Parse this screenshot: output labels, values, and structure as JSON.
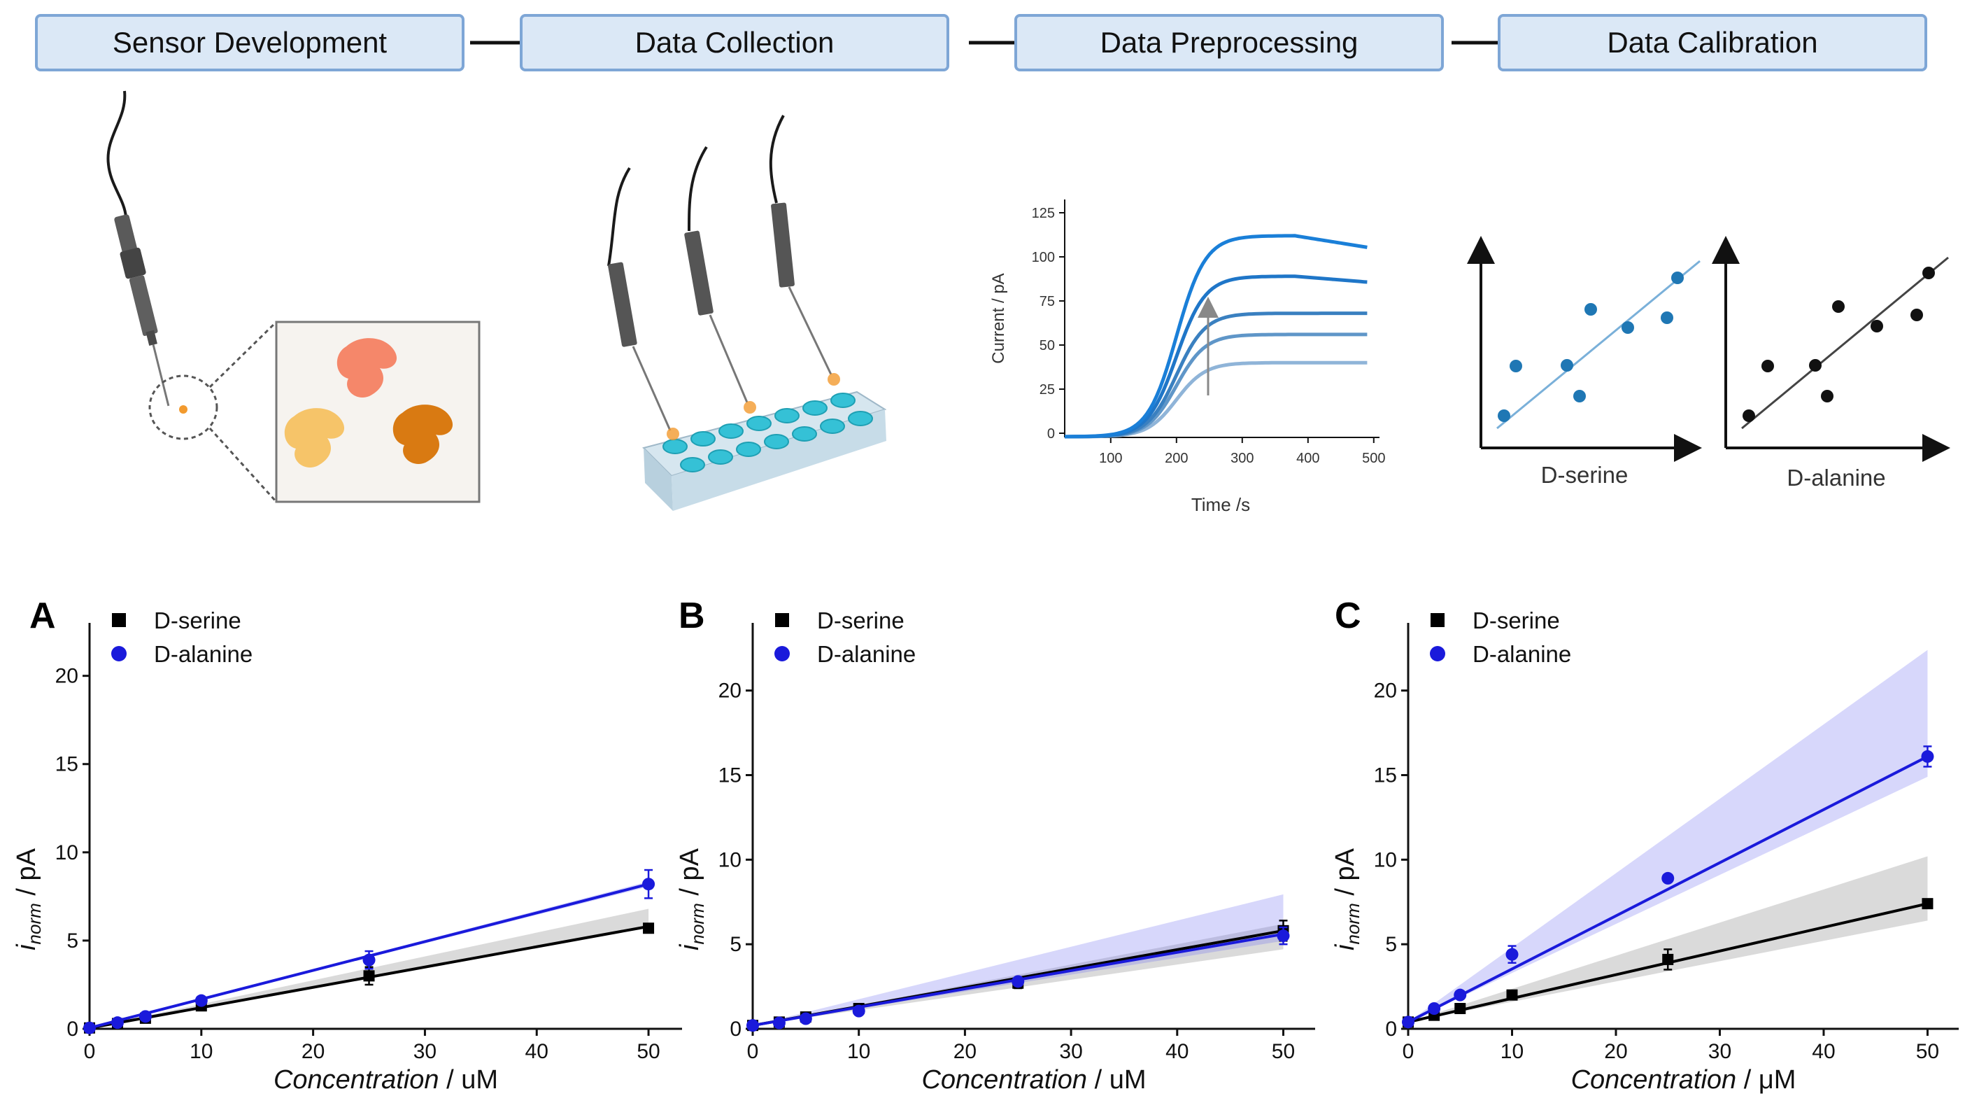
{
  "workflow": {
    "stages": [
      "Sensor Development",
      "Data Collection",
      "Data Preprocessing",
      "Data Calibration"
    ]
  },
  "preprocessing_plot": {
    "ylabel": "Current / pA",
    "xlabel": "Time /s",
    "yticks": [
      "0",
      "25",
      "50",
      "75",
      "100",
      "125"
    ],
    "xticks": [
      "100",
      "200",
      "300",
      "400",
      "500"
    ],
    "curve_plateaus": [
      40,
      56,
      68,
      89,
      112
    ],
    "curve_colors": [
      "#8fb4d8",
      "#5f96c8",
      "#3a80c0",
      "#1f76c8",
      "#1a7fd8"
    ]
  },
  "calibration_plots": [
    {
      "label": "D-serine",
      "color": "#1f77b4"
    },
    {
      "label": "D-alanine",
      "color": "#111111"
    }
  ],
  "chart_data": [
    {
      "type": "scatter",
      "panel": "A",
      "xlabel": "Concentration / uM",
      "ylabel": "i_norm / pA",
      "xlim": [
        0,
        53
      ],
      "ylim": [
        0,
        23
      ],
      "xticks": [
        0,
        10,
        20,
        30,
        40,
        50
      ],
      "yticks": [
        0,
        5,
        10,
        15,
        20
      ],
      "x": [
        0,
        2.5,
        5,
        10,
        25,
        50
      ],
      "series": [
        {
          "name": "D-serine",
          "color": "#000000",
          "marker": "square",
          "values": [
            0.05,
            0.3,
            0.6,
            1.3,
            3.0,
            5.7
          ],
          "errors": [
            0,
            0.05,
            0.1,
            0.1,
            0.5,
            0.25
          ],
          "fit": [
            0.05,
            0.115
          ],
          "band": [
            0.115,
            0.135
          ]
        },
        {
          "name": "D-alanine",
          "color": "#1a1adb",
          "marker": "circle",
          "values": [
            0.05,
            0.35,
            0.7,
            1.6,
            3.9,
            8.2
          ],
          "errors": [
            0,
            0.05,
            0.1,
            0.1,
            0.5,
            0.8
          ],
          "fit": [
            0.05,
            0.163
          ],
          "band": [
            0.16,
            0.166
          ]
        }
      ]
    },
    {
      "type": "scatter",
      "panel": "B",
      "xlabel": "Concentration / uM",
      "ylabel": "i_norm / pA",
      "xlim": [
        0,
        53
      ],
      "ylim": [
        0,
        24
      ],
      "xticks": [
        0,
        10,
        20,
        30,
        40,
        50
      ],
      "yticks": [
        0,
        5,
        10,
        15,
        20
      ],
      "x": [
        0,
        2.5,
        5,
        10,
        25,
        50
      ],
      "series": [
        {
          "name": "D-serine",
          "color": "#000000",
          "marker": "square",
          "values": [
            0.2,
            0.4,
            0.7,
            1.2,
            2.7,
            5.8
          ],
          "errors": [
            0,
            0.1,
            0.1,
            0.2,
            0.3,
            0.6
          ],
          "fit": [
            0.2,
            0.112
          ],
          "band": [
            0.09,
            0.12
          ]
        },
        {
          "name": "D-alanine",
          "color": "#1a1adb",
          "marker": "circle",
          "values": [
            0.2,
            0.35,
            0.6,
            1.05,
            2.8,
            5.5
          ],
          "errors": [
            0,
            0.1,
            0.1,
            0.15,
            0.2,
            0.5
          ],
          "fit": [
            0.2,
            0.108
          ],
          "band": [
            0.1,
            0.155
          ]
        }
      ]
    },
    {
      "type": "scatter",
      "panel": "C",
      "xlabel": "Concentration / μM",
      "ylabel": "i_norm / pA",
      "xlim": [
        0,
        53
      ],
      "ylim": [
        0,
        24
      ],
      "xticks": [
        0,
        10,
        20,
        30,
        40,
        50
      ],
      "yticks": [
        0,
        5,
        10,
        15,
        20
      ],
      "x": [
        0,
        2.5,
        5,
        10,
        25,
        50
      ],
      "series": [
        {
          "name": "D-serine",
          "color": "#000000",
          "marker": "square",
          "values": [
            0.4,
            0.8,
            1.2,
            2.0,
            4.1,
            7.4
          ],
          "errors": [
            0,
            0.1,
            0.1,
            0.2,
            0.6,
            0.2
          ],
          "fit": [
            0.4,
            0.14
          ],
          "band": [
            0.12,
            0.196
          ]
        },
        {
          "name": "D-alanine",
          "color": "#1a1adb",
          "marker": "circle",
          "values": [
            0.4,
            1.2,
            2.0,
            4.4,
            8.9,
            16.1
          ],
          "errors": [
            0,
            0.15,
            0.2,
            0.5,
            0.2,
            0.6
          ],
          "fit": [
            0.4,
            0.314
          ],
          "band": [
            0.29,
            0.44
          ]
        }
      ]
    }
  ]
}
